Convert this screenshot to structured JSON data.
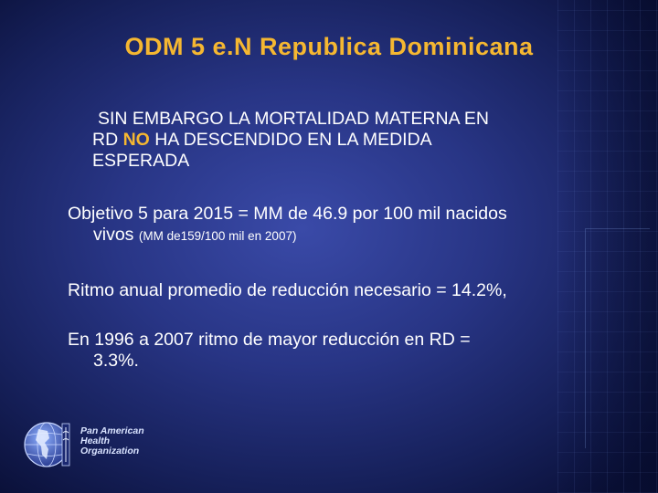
{
  "title": "ODM 5 e.N Republica Dominicana",
  "bullet1": {
    "line1": "SIN EMBARGO LA MORTALIDAD MATERNA EN",
    "line2_pre": "RD ",
    "line2_highlight": "NO",
    "line2_post": " HA DESCENDIDO EN LA MEDIDA",
    "line3": "ESPERADA"
  },
  "bullet2": {
    "line1": "Objetivo 5 para 2015 =  MM de 46.9 por 100 mil nacidos",
    "line2": "vivos",
    "line2_small": "(MM de159/100 mil en 2007)"
  },
  "bullet3": {
    "line1": "Ritmo anual promedio de reducción necesario = 14.2%,"
  },
  "bullet4": {
    "line1": "En 1996 a 2007 ritmo de mayor reducción en RD =",
    "line2": "3.3%."
  },
  "logo": {
    "line1": "Pan American",
    "line2": "Health",
    "line3": "Organization",
    "icon": "globe-icon"
  },
  "colors": {
    "title": "#f5b731",
    "highlight": "#f5b731",
    "text": "#ffffff",
    "background": "#283585"
  }
}
